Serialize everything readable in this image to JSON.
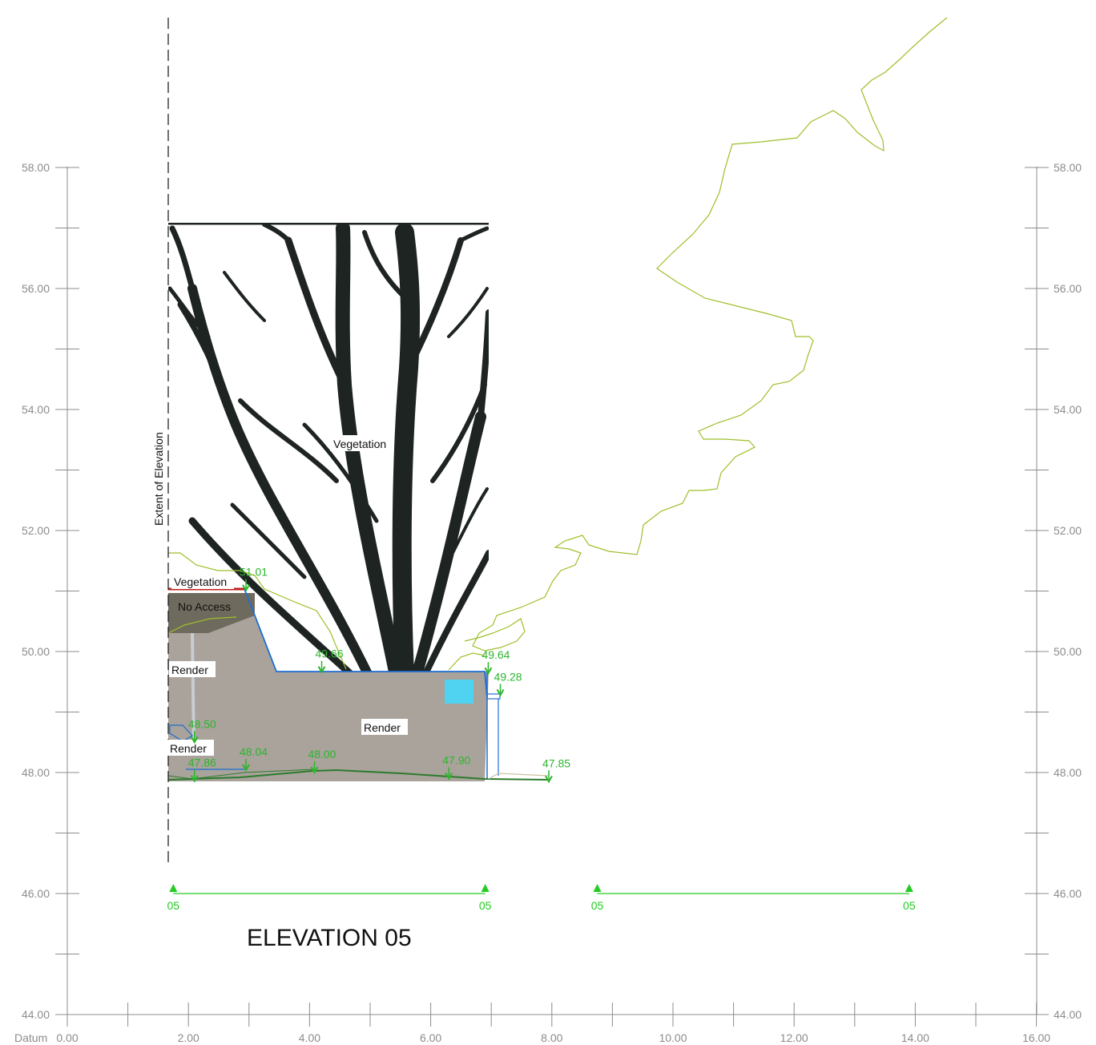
{
  "title": "ELEVATION 05",
  "extent_label": "Extent of Elevation",
  "datum_label": "Datum",
  "axis": {
    "x_ticks": [
      "0.00",
      "2.00",
      "4.00",
      "6.00",
      "8.00",
      "10.00",
      "12.00",
      "14.00",
      "16.00"
    ],
    "y_ticks": [
      "44.00",
      "46.00",
      "48.00",
      "50.00",
      "52.00",
      "54.00",
      "56.00",
      "58.00"
    ],
    "x_range": [
      0,
      16
    ],
    "y_range": [
      44,
      58
    ]
  },
  "materials": {
    "vegetation_tree": "Vegetation",
    "vegetation_bank": "Vegetation",
    "no_access": "No Access",
    "render_upper": "Render",
    "render_main": "Render",
    "render_lower": "Render"
  },
  "levels": [
    {
      "label": "51.01",
      "x": 2.95,
      "y": 51.01
    },
    {
      "label": "49.66",
      "x": 4.2,
      "y": 49.66
    },
    {
      "label": "49.64",
      "x": 6.95,
      "y": 49.64
    },
    {
      "label": "49.28",
      "x": 7.15,
      "y": 49.28
    },
    {
      "label": "48.50",
      "x": 2.1,
      "y": 48.5
    },
    {
      "label": "48.04",
      "x": 2.95,
      "y": 48.04
    },
    {
      "label": "48.00",
      "x": 4.08,
      "y": 48.0
    },
    {
      "label": "47.90",
      "x": 6.3,
      "y": 47.9
    },
    {
      "label": "47.86",
      "x": 2.1,
      "y": 47.86
    },
    {
      "label": "47.85",
      "x": 7.95,
      "y": 47.85
    }
  ],
  "section_markers": {
    "label": "05",
    "pairs": [
      [
        1.75,
        6.9
      ],
      [
        8.75,
        13.9
      ]
    ]
  },
  "colors": {
    "axis": "#8c8c8c",
    "level": "#2db52d",
    "section": "#22cc22",
    "outline": "#1e6fd1",
    "vegetation_outline": "#9ebf2a",
    "render": "#a9a39b",
    "tree": "#1e2422"
  }
}
